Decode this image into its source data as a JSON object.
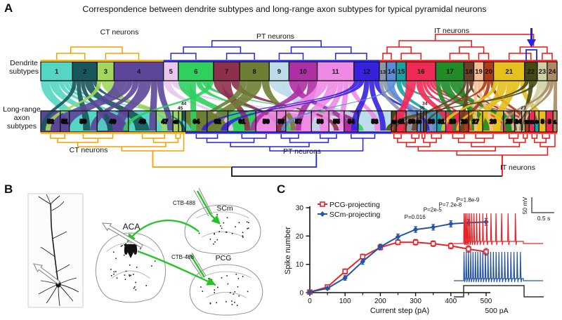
{
  "figure": {
    "panelA": {
      "label": "A",
      "title": "Correspondence between dendrite subtypes and long-range axon subtypes for typical pyramidal neurons",
      "row_label_top": "Dendrite\nsubtypes",
      "row_label_bottom": "Long-range\naxon\nsubtypes",
      "group_colors": {
        "ct": "#f5a100",
        "pt": "#2323e0",
        "it": "#ee1414"
      },
      "top_group_labels": {
        "ct": "CT neurons",
        "pt": "PT neurons",
        "it": "IT neurons"
      },
      "bottom_group_labels": {
        "ct": "CT neurons",
        "pt": "PT neurons",
        "it": "IT neurons"
      },
      "dendrite_groups": [
        {
          "name": "ct",
          "from": 0,
          "count": 4
        },
        {
          "name": "pt",
          "from": 4,
          "count": 8
        },
        {
          "name": "it",
          "from": 12,
          "count": 12
        }
      ],
      "axon_groups": [
        {
          "name": "ct",
          "from": 0,
          "count": 9
        },
        {
          "name": "pt",
          "from": 9,
          "count": 10
        },
        {
          "name": "it",
          "from": 19,
          "count": 21
        }
      ],
      "dendrite_boxes": [
        {
          "id": 1,
          "w": 45,
          "color": "#53d6c3",
          "tc": "b"
        },
        {
          "id": 2,
          "w": 35,
          "color": "#17565c",
          "tc": "w"
        },
        {
          "id": 3,
          "w": 24,
          "color": "#a3d65c",
          "tc": "b"
        },
        {
          "id": 4,
          "w": 70,
          "color": "#5c4699",
          "tc": "b"
        },
        {
          "id": 5,
          "w": 21,
          "color": "#e9c7ef",
          "tc": "b"
        },
        {
          "id": 6,
          "w": 50,
          "color": "#2fd05e",
          "tc": "b"
        },
        {
          "id": 7,
          "w": 37,
          "color": "#8f2f4e",
          "tc": "b"
        },
        {
          "id": 8,
          "w": 42,
          "color": "#6e7e33",
          "tc": "b"
        },
        {
          "id": 9,
          "w": 28,
          "color": "#bcdcec",
          "tc": "b"
        },
        {
          "id": 10,
          "w": 40,
          "color": "#ae2fa4",
          "tc": "b"
        },
        {
          "id": 11,
          "w": 52,
          "color": "#ee8ae6",
          "tc": "b"
        },
        {
          "id": 12,
          "w": 36,
          "color": "#3621de",
          "tc": "w"
        },
        {
          "id": 13,
          "w": 10,
          "color": "#8e96aa",
          "tc": "w"
        },
        {
          "id": 14,
          "w": 14,
          "color": "#5a8bd8",
          "tc": "w"
        },
        {
          "id": 15,
          "w": 14,
          "color": "#17a3a3",
          "tc": "w"
        },
        {
          "id": 16,
          "w": 42,
          "color": "#f02a57",
          "tc": "b"
        },
        {
          "id": 17,
          "w": 40,
          "color": "#1f8c26",
          "tc": "b"
        },
        {
          "id": 18,
          "w": 14,
          "color": "#6a4023",
          "tc": "w"
        },
        {
          "id": 19,
          "w": 14,
          "color": "#f5bd92",
          "tc": "w"
        },
        {
          "id": 20,
          "w": 14,
          "color": "#ae3b16",
          "tc": "w"
        },
        {
          "id": 21,
          "w": 44,
          "color": "#e6c01c",
          "tc": "b"
        },
        {
          "id": 22,
          "w": 18,
          "color": "#464a12",
          "tc": "w"
        },
        {
          "id": 23,
          "w": 14,
          "color": "#ced2a3",
          "tc": "b"
        },
        {
          "id": 24,
          "w": 14,
          "color": "#ad8a62",
          "tc": "b"
        }
      ],
      "axon_boxes": [
        {
          "id": 52,
          "w": 28,
          "color": "#5c4699"
        },
        {
          "id": 51,
          "w": 13,
          "color": "#5c4699"
        },
        {
          "id": 50,
          "w": 40,
          "color": "#53d6c3"
        },
        {
          "id": 49,
          "w": 45,
          "color": "#5c4699"
        },
        {
          "id": 48,
          "w": 40,
          "color": "#53d6c3"
        },
        {
          "id": 47,
          "w": 24,
          "color": "#53d6c3"
        },
        {
          "id": 46,
          "w": 8,
          "color": "#a3d65c"
        },
        {
          "id": 45,
          "w": 5,
          "color": "#a3d65c",
          "above": true
        },
        {
          "id": 44,
          "w": 5,
          "color": "#17565c",
          "above": true
        },
        {
          "id": 64,
          "w": 31,
          "color": "#6e7e33"
        },
        {
          "id": 62,
          "w": 30,
          "color": "#6e7e33"
        },
        {
          "id": 61,
          "w": 40,
          "color": "#2fd05e"
        },
        {
          "id": 59,
          "w": 30,
          "color": "#ee8ae6"
        },
        {
          "id": 58,
          "w": 13,
          "color": "#8f2f4e"
        },
        {
          "id": 57,
          "w": 37,
          "color": "#ee8ae6"
        },
        {
          "id": 56,
          "w": 25,
          "color": "#ee8ae6"
        },
        {
          "id": 55,
          "w": 22,
          "color": "#e9c7ef"
        },
        {
          "id": 54,
          "w": 20,
          "color": "#ae2fa4"
        },
        {
          "id": 53,
          "w": 48,
          "color": "#bcdcec"
        },
        {
          "id": 43,
          "w": 7,
          "color": "#464a12"
        },
        {
          "id": 41,
          "w": 14,
          "color": "#f02a57"
        },
        {
          "id": 38,
          "w": 16,
          "color": "#8e96aa"
        },
        {
          "id": 36,
          "w": 5,
          "color": "#5a8bd8"
        },
        {
          "id": 35,
          "w": 4,
          "color": "#5a8bd8",
          "above": true
        },
        {
          "id": 34,
          "w": 4,
          "color": "#6a4023",
          "above": true
        },
        {
          "id": 33,
          "w": 15,
          "color": "#5a8bd8"
        },
        {
          "id": 31,
          "w": 13,
          "color": "#17a3a3"
        },
        {
          "id": 29,
          "w": 20,
          "color": "#f02a57"
        },
        {
          "id": 28,
          "w": 13,
          "color": "#ae3b16"
        },
        {
          "id": 27,
          "w": 20,
          "color": "#e6c01c"
        },
        {
          "id": 26,
          "w": 30,
          "color": "#e6c01c"
        },
        {
          "id": 25,
          "w": 16,
          "color": "#1f8c26"
        },
        {
          "id": 24,
          "w": 10,
          "color": "#ced2a3"
        },
        {
          "id": 23,
          "w": 5,
          "color": "#ced2a3",
          "above": true
        },
        {
          "id": 22,
          "w": 6,
          "color": "#ae3b16"
        },
        {
          "id": 11,
          "w": 8,
          "color": "#f02a57"
        },
        {
          "id": 9,
          "w": 6,
          "color": "#17a3a3"
        },
        {
          "id": 8,
          "w": 10,
          "color": "#e6c01c"
        },
        {
          "id": 3,
          "w": 10,
          "color": "#f02a57"
        },
        {
          "id": 1,
          "w": 6,
          "color": "#ad8a62"
        }
      ],
      "links": [
        [
          1,
          50,
          2
        ],
        [
          1,
          49,
          2
        ],
        [
          1,
          48,
          1
        ],
        [
          1,
          47,
          1
        ],
        [
          1,
          64,
          1
        ],
        [
          2,
          52,
          1
        ],
        [
          2,
          50,
          1
        ],
        [
          2,
          49,
          1
        ],
        [
          2,
          48,
          2
        ],
        [
          2,
          44,
          1
        ],
        [
          3,
          52,
          1
        ],
        [
          3,
          46,
          1
        ],
        [
          3,
          45,
          1
        ],
        [
          3,
          47,
          1
        ],
        [
          4,
          52,
          2
        ],
        [
          4,
          51,
          1
        ],
        [
          4,
          50,
          1
        ],
        [
          4,
          49,
          2
        ],
        [
          4,
          48,
          1
        ],
        [
          4,
          47,
          1
        ],
        [
          5,
          61,
          1
        ],
        [
          5,
          55,
          1
        ],
        [
          6,
          61,
          2
        ],
        [
          6,
          64,
          1
        ],
        [
          6,
          57,
          1
        ],
        [
          6,
          53,
          1
        ],
        [
          6,
          49,
          1
        ],
        [
          7,
          58,
          1
        ],
        [
          7,
          61,
          1
        ],
        [
          7,
          55,
          1
        ],
        [
          8,
          64,
          1
        ],
        [
          8,
          62,
          2
        ],
        [
          8,
          57,
          1
        ],
        [
          9,
          53,
          2
        ],
        [
          9,
          56,
          1
        ],
        [
          10,
          54,
          1
        ],
        [
          10,
          61,
          1
        ],
        [
          10,
          57,
          1
        ],
        [
          11,
          59,
          2
        ],
        [
          11,
          57,
          2
        ],
        [
          11,
          56,
          1
        ],
        [
          11,
          55,
          1
        ],
        [
          11,
          53,
          1
        ],
        [
          12,
          64,
          1
        ],
        [
          12,
          62,
          1
        ],
        [
          12,
          54,
          1
        ],
        [
          12,
          53,
          1
        ],
        [
          12,
          33,
          1
        ],
        [
          13,
          38,
          1
        ],
        [
          13,
          33,
          1
        ],
        [
          14,
          33,
          1
        ],
        [
          14,
          36,
          1
        ],
        [
          14,
          35,
          1
        ],
        [
          14,
          58,
          1
        ],
        [
          15,
          31,
          1
        ],
        [
          15,
          9,
          1
        ],
        [
          16,
          41,
          2
        ],
        [
          16,
          43,
          1
        ],
        [
          16,
          29,
          2
        ],
        [
          16,
          27,
          1
        ],
        [
          16,
          25,
          1
        ],
        [
          16,
          11,
          1
        ],
        [
          16,
          3,
          1
        ],
        [
          17,
          29,
          1
        ],
        [
          17,
          26,
          2
        ],
        [
          17,
          25,
          2
        ],
        [
          17,
          27,
          1
        ],
        [
          18,
          38,
          1
        ],
        [
          18,
          28,
          1
        ],
        [
          18,
          24,
          1
        ],
        [
          18,
          34,
          1
        ],
        [
          19,
          27,
          1
        ],
        [
          19,
          26,
          1
        ],
        [
          19,
          25,
          1
        ],
        [
          20,
          41,
          1
        ],
        [
          20,
          28,
          1
        ],
        [
          20,
          22,
          1
        ],
        [
          21,
          31,
          1
        ],
        [
          21,
          27,
          2
        ],
        [
          21,
          26,
          2
        ],
        [
          21,
          29,
          1
        ],
        [
          21,
          8,
          1
        ],
        [
          22,
          43,
          1
        ],
        [
          22,
          23,
          1
        ],
        [
          22,
          53,
          1
        ],
        [
          23,
          24,
          1
        ],
        [
          23,
          23,
          1
        ],
        [
          24,
          26,
          1
        ],
        [
          24,
          24,
          1
        ],
        [
          24,
          1,
          1
        ]
      ]
    },
    "panelB": {
      "label": "B",
      "aca_label": "ACA",
      "scm_label": "SCm",
      "pcg_label": "PCG",
      "ctb_label_1": "CTB-488",
      "ctb_label_2": "CTB-488"
    },
    "panelC": {
      "label": "C",
      "scale_v": "50 mV",
      "scale_h": "0.5 s",
      "step_label": "500 pA"
    }
  },
  "chart_data": {
    "type": "line",
    "title": "",
    "xlabel": "Current step (pA)",
    "ylabel": "Spike number",
    "x": [
      0,
      50,
      100,
      150,
      200,
      250,
      300,
      350,
      400,
      450,
      500
    ],
    "series": [
      {
        "name": "PCG-projecting",
        "color": "#e62428",
        "marker": "open-square",
        "values": [
          0.2,
          2,
          7.5,
          12.7,
          16,
          17.8,
          17.8,
          17.3,
          16.5,
          15.4,
          14.4
        ],
        "errors": [
          0.2,
          0.5,
          0.9,
          0.9,
          0.9,
          0.9,
          1,
          1,
          1,
          1.1,
          1.2
        ]
      },
      {
        "name": "SCm-projecting",
        "color": "#2553a6",
        "marker": "diamond",
        "values": [
          0.2,
          1.5,
          5.2,
          11,
          16.2,
          19.7,
          22.3,
          23.1,
          24.3,
          24.7,
          25
        ],
        "errors": [
          0.2,
          0.4,
          0.8,
          1,
          0.9,
          1,
          1,
          1,
          1.1,
          1.1,
          1.2
        ]
      }
    ],
    "annotations": [
      {
        "x": 350,
        "label": "P=0.016"
      },
      {
        "x": 400,
        "label": "P=2e-5"
      },
      {
        "x": 450,
        "label": "P=7.2e-8"
      },
      {
        "x": 500,
        "label": "P=1.8e-9"
      }
    ],
    "ylim": [
      0,
      30
    ],
    "yticks": [
      0,
      10,
      20,
      30
    ],
    "xticks": [
      0,
      100,
      200,
      300,
      400,
      500
    ],
    "xticks_minor": [
      50,
      150,
      250,
      350,
      450
    ],
    "legend_position": "top-left",
    "grid": false
  }
}
